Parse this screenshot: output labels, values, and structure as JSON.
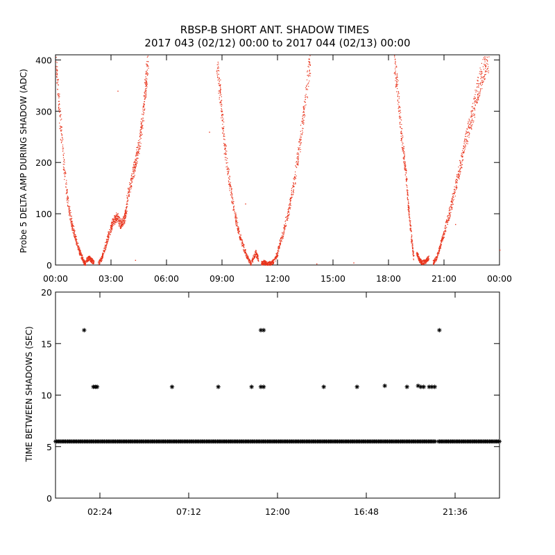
{
  "header": {
    "title_line1": "RBSP-B SHORT ANT. SHADOW TIMES",
    "title_line2": "2017 043 (02/12) 00:00 to 2017 044 (02/13) 00:00"
  },
  "chart_data": [
    {
      "type": "scatter",
      "id": "delta-amp",
      "ylabel": "Probe 5 DELTA AMP DURING SHADOW (ADC)",
      "xlabel": "",
      "x_unit": "hours",
      "xlim": [
        0,
        24
      ],
      "ylim": [
        0,
        410
      ],
      "xticks": [
        0,
        3,
        6,
        9,
        12,
        15,
        18,
        21,
        24
      ],
      "xtick_labels": [
        "00:00",
        "03:00",
        "06:00",
        "09:00",
        "12:00",
        "15:00",
        "18:00",
        "21:00",
        "00:00"
      ],
      "yticks": [
        0,
        100,
        200,
        300,
        400
      ],
      "ytick_labels": [
        "0",
        "100",
        "200",
        "300",
        "400"
      ],
      "color": "#e8341c",
      "segments": [
        {
          "x": [
            0.0,
            0.2,
            0.45,
            0.7,
            0.9,
            1.1,
            1.3,
            1.5,
            1.6
          ],
          "y": [
            400,
            300,
            190,
            110,
            75,
            50,
            25,
            8,
            3
          ]
        },
        {
          "x": [
            1.65,
            1.8,
            1.95,
            2.05
          ],
          "y": [
            10,
            14,
            9,
            5
          ]
        },
        {
          "x": [
            2.3,
            2.5,
            2.7,
            2.9,
            3.1,
            3.3,
            3.5,
            3.7,
            3.85
          ],
          "y": [
            3,
            15,
            40,
            65,
            85,
            95,
            80,
            90,
            115
          ]
        },
        {
          "x": [
            3.85,
            4.1,
            4.3,
            4.5,
            4.7,
            4.85,
            5.0
          ],
          "y": [
            130,
            165,
            200,
            235,
            290,
            350,
            400
          ]
        },
        {
          "x": [
            8.7,
            8.9,
            9.1,
            9.35,
            9.6,
            9.85,
            10.1,
            10.35,
            10.55
          ],
          "y": [
            400,
            330,
            240,
            170,
            115,
            70,
            40,
            15,
            3
          ]
        },
        {
          "x": [
            10.6,
            10.8,
            10.95
          ],
          "y": [
            8,
            25,
            12
          ]
        },
        {
          "x": [
            11.1,
            11.25,
            11.4,
            11.6,
            11.8,
            12.0
          ],
          "y": [
            3,
            6,
            3,
            4,
            8,
            25
          ]
        },
        {
          "x": [
            12.0,
            12.3,
            12.6,
            12.9,
            13.2,
            13.45,
            13.75
          ],
          "y": [
            30,
            65,
            110,
            165,
            240,
            310,
            400
          ]
        },
        {
          "x": [
            18.3,
            18.5,
            18.7,
            18.9,
            19.05,
            19.2,
            19.35
          ],
          "y": [
            400,
            330,
            250,
            190,
            120,
            60,
            15
          ]
        },
        {
          "x": [
            19.5,
            19.65,
            19.8,
            20.0,
            20.15
          ],
          "y": [
            25,
            10,
            5,
            8,
            15
          ]
        },
        {
          "x": [
            20.4,
            20.6,
            20.8,
            21.0,
            21.3,
            21.6,
            21.9,
            22.2,
            22.5,
            22.8,
            23.1,
            23.4
          ],
          "y": [
            5,
            15,
            40,
            65,
            105,
            150,
            200,
            250,
            290,
            340,
            380,
            405
          ]
        }
      ],
      "isolated_points": [
        {
          "x": 3.35,
          "y": 340
        },
        {
          "x": 10.25,
          "y": 120
        },
        {
          "x": 8.3,
          "y": 260
        },
        {
          "x": 16.1,
          "y": 5
        },
        {
          "x": 14.1,
          "y": 3
        },
        {
          "x": 21.6,
          "y": 80
        },
        {
          "x": 24.0,
          "y": 30
        },
        {
          "x": 4.3,
          "y": 10
        }
      ]
    },
    {
      "type": "scatter",
      "id": "time-between",
      "ylabel": "TIME BETWEEN SHADOWS (SEC)",
      "xlabel": "",
      "x_unit": "hours",
      "xlim": [
        0,
        24
      ],
      "ylim": [
        0,
        20
      ],
      "xticks": [
        2.4,
        7.2,
        12.0,
        16.8,
        21.6
      ],
      "xtick_labels": [
        "02:24",
        "07:12",
        "12:00",
        "16:48",
        "21:36"
      ],
      "yticks": [
        0,
        5,
        10,
        15,
        20
      ],
      "ytick_labels": [
        "0",
        "5",
        "10",
        "15",
        "20"
      ],
      "marker": "*",
      "color": "#000000",
      "baseline": {
        "y": 5.5,
        "x_start": 0.0,
        "x_end": 24.0,
        "gaps": [
          20.6
        ]
      },
      "points": [
        {
          "x": 1.55,
          "y": 16.3
        },
        {
          "x": 11.1,
          "y": 16.3
        },
        {
          "x": 11.25,
          "y": 16.3
        },
        {
          "x": 20.75,
          "y": 16.3
        },
        {
          "x": 2.05,
          "y": 10.8
        },
        {
          "x": 2.15,
          "y": 10.8
        },
        {
          "x": 2.25,
          "y": 10.8
        },
        {
          "x": 6.3,
          "y": 10.8
        },
        {
          "x": 8.8,
          "y": 10.8
        },
        {
          "x": 10.6,
          "y": 10.8
        },
        {
          "x": 11.1,
          "y": 10.8
        },
        {
          "x": 11.25,
          "y": 10.8
        },
        {
          "x": 14.5,
          "y": 10.8
        },
        {
          "x": 16.3,
          "y": 10.8
        },
        {
          "x": 17.8,
          "y": 10.9
        },
        {
          "x": 19.0,
          "y": 10.8
        },
        {
          "x": 19.6,
          "y": 10.9
        },
        {
          "x": 19.75,
          "y": 10.8
        },
        {
          "x": 19.9,
          "y": 10.8
        },
        {
          "x": 20.2,
          "y": 10.8
        },
        {
          "x": 20.35,
          "y": 10.8
        },
        {
          "x": 20.5,
          "y": 10.8
        }
      ]
    }
  ]
}
